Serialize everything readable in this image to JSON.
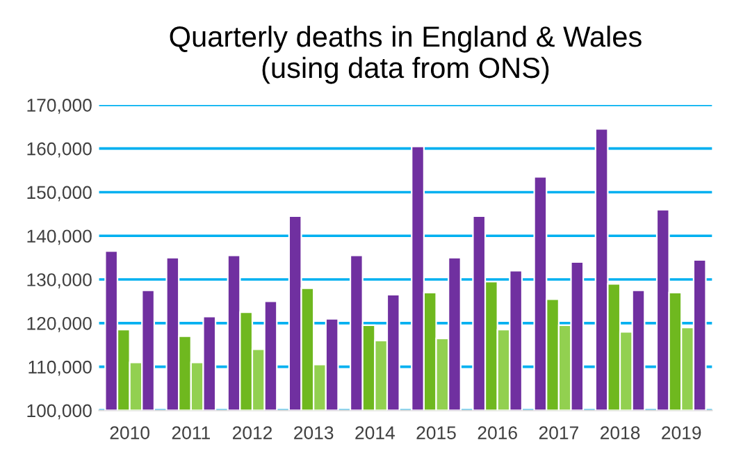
{
  "chart_data": {
    "type": "bar",
    "title": "Quarterly deaths in England & Wales\n(using data from ONS)",
    "categories": [
      "2010",
      "2011",
      "2012",
      "2013",
      "2014",
      "2015",
      "2016",
      "2017",
      "2018",
      "2019"
    ],
    "series": [
      {
        "color": "#7030a0",
        "values": [
          136500,
          135000,
          135500,
          144500,
          135500,
          160500,
          144500,
          153500,
          164500,
          146000
        ]
      },
      {
        "color": "#6fb81f",
        "values": [
          118500,
          117000,
          122500,
          128000,
          119500,
          127000,
          129500,
          125500,
          129000,
          127000
        ]
      },
      {
        "color": "#92d050",
        "values": [
          111000,
          111000,
          114000,
          110500,
          116000,
          116500,
          118500,
          119500,
          118000,
          119000
        ]
      },
      {
        "color": "#7030a0",
        "values": [
          127500,
          121500,
          125000,
          121000,
          126500,
          135000,
          132000,
          134000,
          127500,
          134500
        ]
      }
    ],
    "ylim": [
      100000,
      170000
    ],
    "yticks": [
      {
        "value": 100000,
        "label": "100,000"
      },
      {
        "value": 110000,
        "label": "110,000"
      },
      {
        "value": 120000,
        "label": "120,000"
      },
      {
        "value": 130000,
        "label": "130,000"
      },
      {
        "value": 140000,
        "label": "140,000"
      },
      {
        "value": 150000,
        "label": "150,000"
      },
      {
        "value": 160000,
        "label": "160,000"
      },
      {
        "value": 170000,
        "label": "170,000"
      }
    ],
    "grid": "y"
  }
}
